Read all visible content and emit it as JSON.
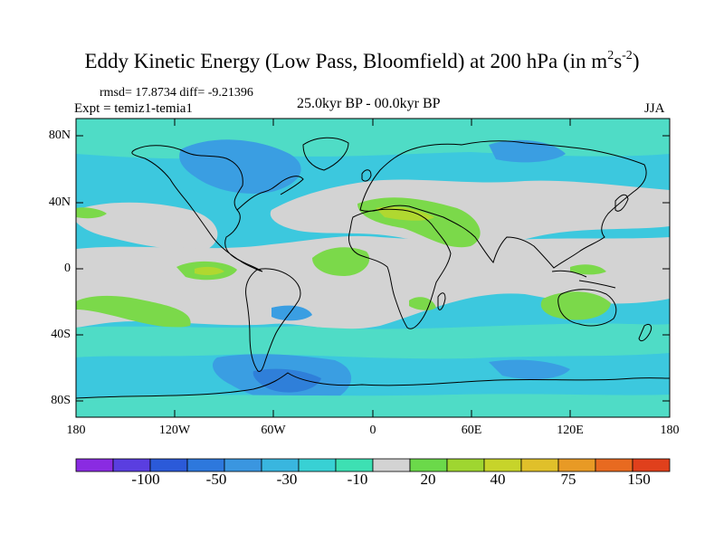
{
  "title": "Eddy Kinetic Energy (Low Pass, Bloomfield) at 200 hPa (in m",
  "title_unit_exp1": "2",
  "title_unit_s": "s",
  "title_unit_exp2": "-2",
  "title_close": ")",
  "stats": "rmsd= 17.8734  diff= -9.21396",
  "experiment": "Expt = temiz1-temia1",
  "period": "25.0kyr BP - 00.0kyr BP",
  "season": "JJA",
  "lat_ticks": [
    "80N",
    "40N",
    "0",
    "40S",
    "80S"
  ],
  "lon_ticks": [
    "180",
    "120W",
    "60W",
    "0",
    "60E",
    "120E",
    "180"
  ],
  "colorbar": {
    "colors": [
      "#8a2be2",
      "#5a3ee0",
      "#2b5ad9",
      "#2d78dd",
      "#3a96e0",
      "#39b6df",
      "#38d1d4",
      "#3de0b3",
      "#d3d3d3",
      "#6bd94a",
      "#9fd630",
      "#c7d42a",
      "#e0c02a",
      "#e89a25",
      "#e86a20",
      "#e0401c"
    ],
    "labels": [
      "-100",
      "-50",
      "-30",
      "-10",
      "20",
      "40",
      "75",
      "150"
    ]
  },
  "map_colors": {
    "neutral": "#d3d3d3",
    "teal": "#4fdcc6",
    "cyan": "#3cc8de",
    "blue": "#3a9ee2",
    "deep_blue": "#2f7fd9",
    "green": "#7bd94a",
    "yellow_green": "#b0d830"
  }
}
